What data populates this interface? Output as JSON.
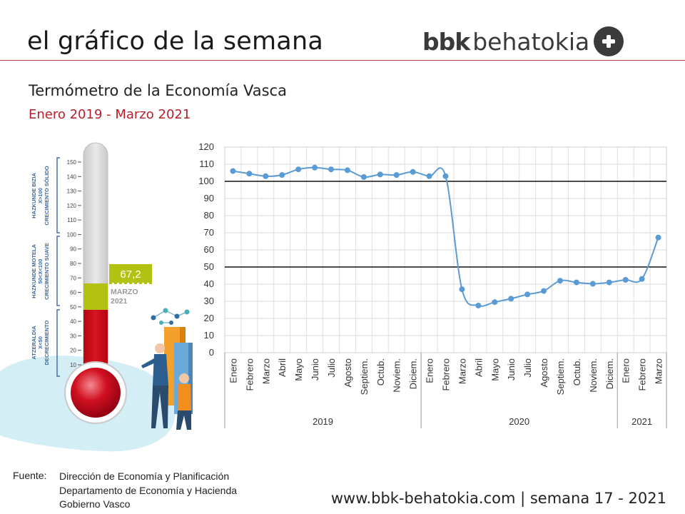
{
  "header": {
    "title": "el gráfico de la semana",
    "logo_bold": "bbk",
    "logo_light": "behatokia"
  },
  "subtitle": "Termómetro de la Economía Vasca",
  "period": "Enero 2019 - Marzo 2021",
  "thermometer": {
    "value": 67.2,
    "value_label": "67,2",
    "month_label": "MARZO",
    "year_label": "2021",
    "scale": [
      "150",
      "140",
      "130",
      "120",
      "110",
      "100",
      "90",
      "80",
      "70",
      "60",
      "50",
      "40",
      "30",
      "20",
      "10"
    ],
    "zones": [
      {
        "name_eu": "HAZKUNDE BIZIA",
        "cond": "X>100",
        "name_es": "CRECIMIENTO SÓLIDO"
      },
      {
        "name_eu": "HAZKUNDE MOTELA",
        "cond": "50<X<100",
        "name_es": "CRECIMIENTO SUAVE"
      },
      {
        "name_eu": "ATZERALDIA",
        "cond": "X<50",
        "name_es": "DECRECIMIENTO"
      }
    ],
    "colors": {
      "red": "#cc0a17",
      "green": "#b3c212",
      "tube": "#d9d9d9"
    }
  },
  "chart_data": {
    "type": "line",
    "ylim": [
      0,
      120
    ],
    "yticks": [
      "0",
      "10",
      "20",
      "30",
      "40",
      "50",
      "60",
      "70",
      "80",
      "90",
      "100",
      "110",
      "120"
    ],
    "reference_lines": [
      100,
      50
    ],
    "categories": [
      "Enero",
      "Febrero",
      "Marzo",
      "Abril",
      "Mayo",
      "Junio",
      "Julio",
      "Agosto",
      "Septiem.",
      "Octub.",
      "Noviem.",
      "Diciem.",
      "Enero",
      "Febrero",
      "Marzo",
      "Abril",
      "Mayo",
      "Junio",
      "Julio",
      "Agosto",
      "Septiem.",
      "Octub.",
      "Noviem.",
      "Diciem.",
      "Enero",
      "Febrero",
      "Marzo"
    ],
    "values": [
      106,
      104.5,
      103,
      103.7,
      107,
      108,
      107,
      106.5,
      102.5,
      104,
      103.7,
      105.5,
      103,
      103,
      37,
      27.5,
      29.5,
      31.5,
      34,
      36,
      42,
      41,
      40.2,
      41,
      42.5,
      43,
      67.2
    ],
    "years": [
      {
        "label": "2019",
        "count": 12
      },
      {
        "label": "2020",
        "count": 12
      },
      {
        "label": "2021",
        "count": 3
      }
    ],
    "color": "#5b9bd5"
  },
  "footer": {
    "source_label": "Fuente:",
    "source_lines": [
      "Dirección de Economía y Planificación",
      "Departamento de Economía y Hacienda",
      "Gobierno Vasco"
    ],
    "url": "www.bbk-behatokia.com | semana 17 - 2021"
  }
}
